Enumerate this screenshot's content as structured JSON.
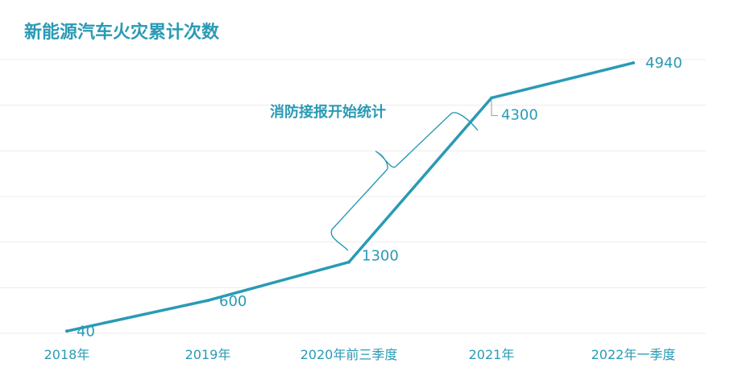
{
  "chart_data": {
    "type": "line",
    "title": "新能源汽车火灾累计次数",
    "categories": [
      "2018年",
      "2019年",
      "2020年前三季度",
      "2021年",
      "2022年一季度"
    ],
    "series": [
      {
        "values": [
          40,
          600,
          1300,
          4300,
          4940
        ]
      }
    ],
    "data_labels": [
      "40",
      "600",
      "1300",
      "4300",
      "4940"
    ],
    "annotation": "消防接报开始统计",
    "ylim": [
      0,
      5000
    ],
    "grid": true,
    "color": "#2a9ab5"
  }
}
